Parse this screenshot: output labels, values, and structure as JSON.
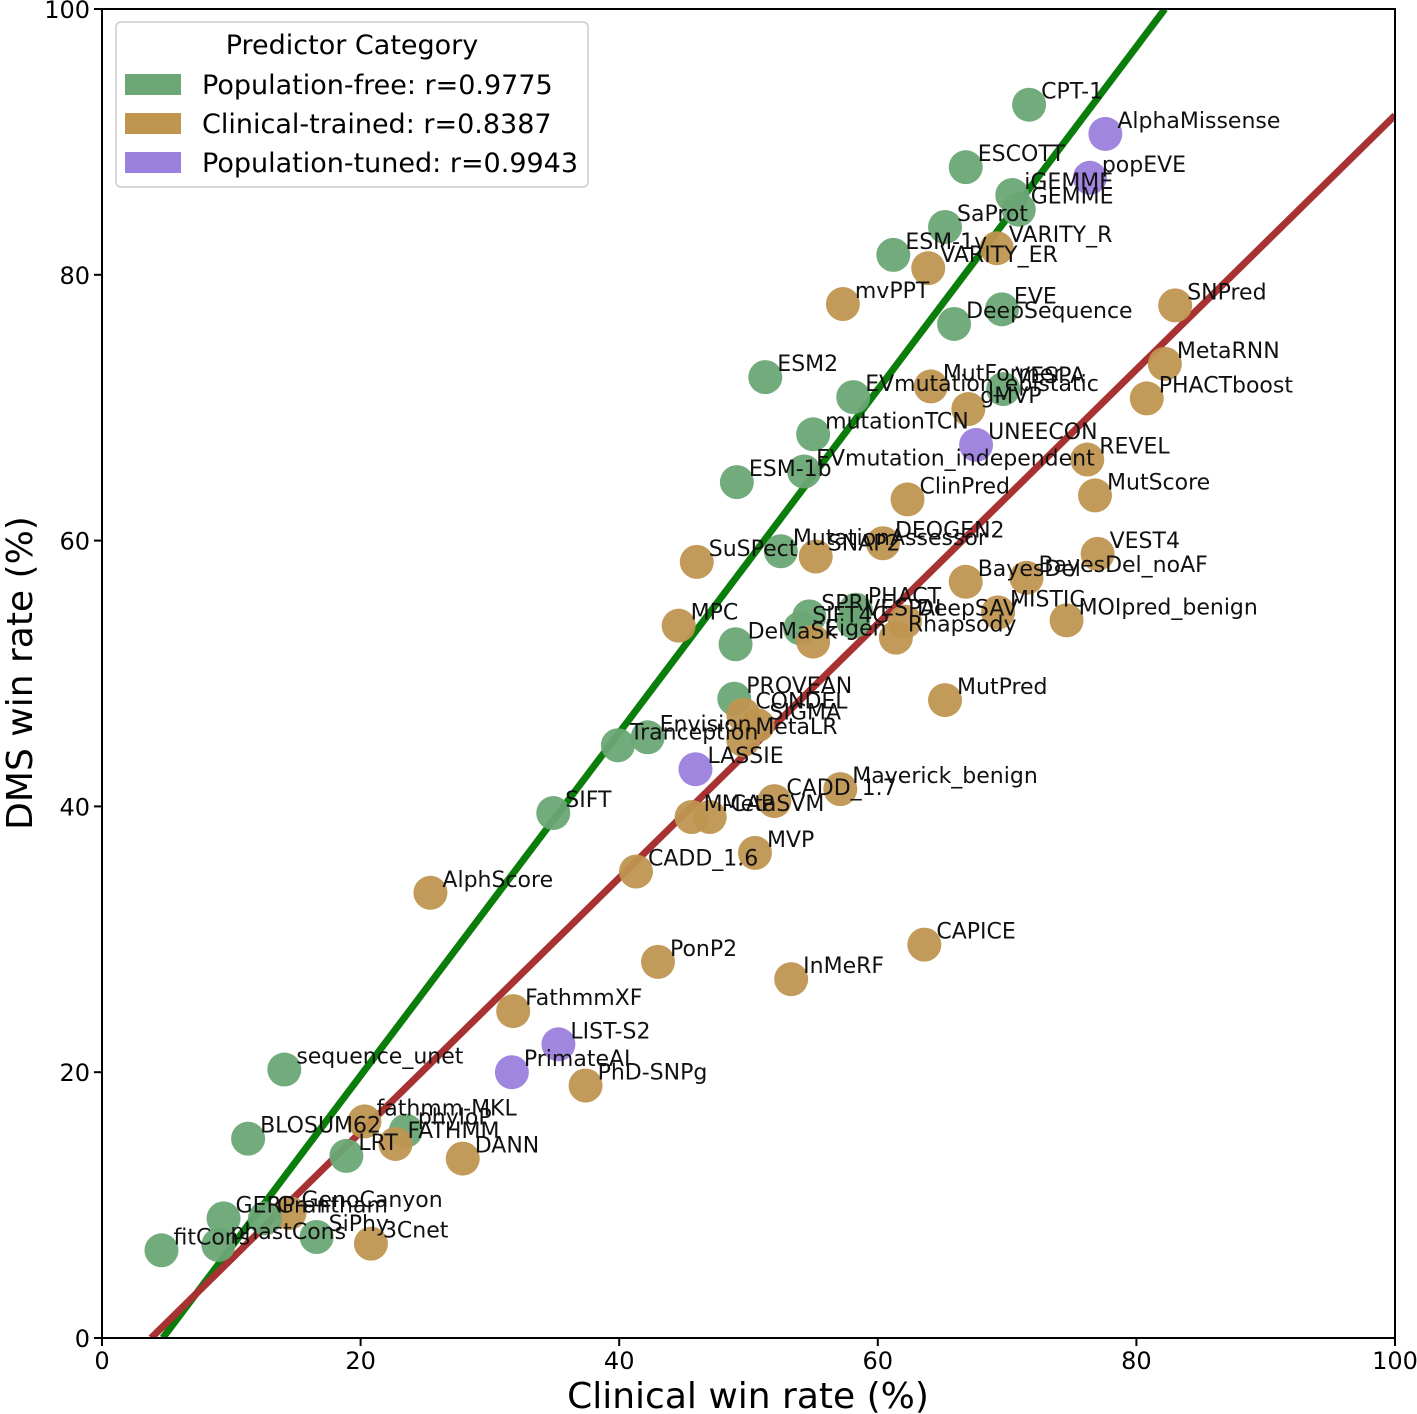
{
  "chart_data": {
    "type": "scatter",
    "xlabel": "Clinical win rate (%)",
    "ylabel": "DMS win rate (%)",
    "xlim": [
      0,
      100
    ],
    "ylim": [
      0,
      100
    ],
    "xticks": [
      0,
      20,
      40,
      60,
      80,
      100
    ],
    "yticks": [
      0,
      20,
      40,
      60,
      80,
      100
    ],
    "grid": false,
    "legend": {
      "title": "Predictor Category",
      "position": "top-left",
      "entries": [
        {
          "key": "population-free",
          "label": "Population-free: r=0.9775"
        },
        {
          "key": "clinical-trained",
          "label": "Clinical-trained: r=0.8387"
        },
        {
          "key": "population-tuned",
          "label": "Population-tuned: r=0.9943"
        }
      ]
    },
    "colors": {
      "population-free": "#6aa775",
      "clinical-trained": "#bf9550",
      "population-tuned": "#9b80dd",
      "fit_population_free": "#0a7d0a",
      "fit_clinical": "#a83232"
    },
    "fit_lines": [
      {
        "name": "Population-free fit",
        "color_key": "fit_population_free",
        "points": [
          [
            4.7,
            0
          ],
          [
            82.2,
            100
          ]
        ]
      },
      {
        "name": "Clinical-trained fit",
        "color_key": "fit_clinical",
        "points": [
          [
            3.8,
            0
          ],
          [
            100,
            92
          ]
        ]
      }
    ],
    "points": [
      {
        "name": "CPT-1",
        "x": 71.7,
        "y": 92.8,
        "cat": "population-free"
      },
      {
        "name": "AlphaMissense",
        "x": 77.6,
        "y": 90.6,
        "cat": "population-tuned"
      },
      {
        "name": "ESCOTT",
        "x": 66.8,
        "y": 88.1,
        "cat": "population-free"
      },
      {
        "name": "popEVE",
        "x": 76.4,
        "y": 87.3,
        "cat": "population-tuned"
      },
      {
        "name": "iGEMME",
        "x": 70.4,
        "y": 86.0,
        "cat": "population-free"
      },
      {
        "name": "GEMME",
        "x": 70.9,
        "y": 84.9,
        "cat": "population-free"
      },
      {
        "name": "SaProt",
        "x": 65.2,
        "y": 83.6,
        "cat": "population-free"
      },
      {
        "name": "ESM-1v",
        "x": 61.2,
        "y": 81.5,
        "cat": "population-free"
      },
      {
        "name": "VARITY_R",
        "x": 69.2,
        "y": 82.0,
        "cat": "clinical-trained"
      },
      {
        "name": "VARITY_ER",
        "x": 63.9,
        "y": 80.5,
        "cat": "clinical-trained"
      },
      {
        "name": "mvPPT",
        "x": 57.3,
        "y": 77.8,
        "cat": "clinical-trained"
      },
      {
        "name": "EVE",
        "x": 69.6,
        "y": 77.4,
        "cat": "population-free"
      },
      {
        "name": "DeepSequence",
        "x": 65.9,
        "y": 76.3,
        "cat": "population-free"
      },
      {
        "name": "SNPred",
        "x": 83.0,
        "y": 77.7,
        "cat": "clinical-trained"
      },
      {
        "name": "MetaRNN",
        "x": 82.2,
        "y": 73.3,
        "cat": "clinical-trained"
      },
      {
        "name": "ESM2",
        "x": 51.3,
        "y": 72.3,
        "cat": "population-free"
      },
      {
        "name": "VESPA",
        "x": 69.7,
        "y": 71.4,
        "cat": "population-free"
      },
      {
        "name": "MutFormer",
        "x": 64.1,
        "y": 71.6,
        "cat": "clinical-trained"
      },
      {
        "name": "EVmutation_epistatic",
        "x": 58.1,
        "y": 70.8,
        "cat": "population-free"
      },
      {
        "name": "PHACTboost",
        "x": 80.8,
        "y": 70.7,
        "cat": "clinical-trained"
      },
      {
        "name": "gMVP",
        "x": 67.0,
        "y": 69.9,
        "cat": "clinical-trained"
      },
      {
        "name": "mutationTCN",
        "x": 55.0,
        "y": 68.0,
        "cat": "population-free"
      },
      {
        "name": "UNEECON",
        "x": 67.6,
        "y": 67.2,
        "cat": "population-tuned"
      },
      {
        "name": "REVEL",
        "x": 76.2,
        "y": 66.1,
        "cat": "clinical-trained"
      },
      {
        "name": "EVmutation_independent",
        "x": 54.3,
        "y": 65.2,
        "cat": "population-free"
      },
      {
        "name": "ESM-1b",
        "x": 49.1,
        "y": 64.4,
        "cat": "population-free"
      },
      {
        "name": "ClinPred",
        "x": 62.3,
        "y": 63.1,
        "cat": "clinical-trained"
      },
      {
        "name": "MutScore",
        "x": 76.8,
        "y": 63.4,
        "cat": "clinical-trained"
      },
      {
        "name": "DEOGEN2",
        "x": 60.4,
        "y": 59.8,
        "cat": "clinical-trained"
      },
      {
        "name": "VEST4",
        "x": 77.0,
        "y": 59.0,
        "cat": "clinical-trained"
      },
      {
        "name": "MutationAssessor",
        "x": 52.5,
        "y": 59.2,
        "cat": "population-free"
      },
      {
        "name": "SuSPect",
        "x": 46.0,
        "y": 58.4,
        "cat": "clinical-trained"
      },
      {
        "name": "SNAP2",
        "x": 55.2,
        "y": 58.8,
        "cat": "clinical-trained"
      },
      {
        "name": "BayesDel",
        "x": 66.8,
        "y": 56.9,
        "cat": "clinical-trained"
      },
      {
        "name": "BayesDel_noAF",
        "x": 71.5,
        "y": 57.2,
        "cat": "clinical-trained"
      },
      {
        "name": "SPRI",
        "x": 54.7,
        "y": 54.3,
        "cat": "population-free"
      },
      {
        "name": "PHACT",
        "x": 58.3,
        "y": 54.8,
        "cat": "population-free"
      },
      {
        "name": "MISTIC",
        "x": 69.3,
        "y": 54.6,
        "cat": "clinical-trained"
      },
      {
        "name": "MPC",
        "x": 44.6,
        "y": 53.6,
        "cat": "clinical-trained"
      },
      {
        "name": "SIFT4G",
        "x": 54.0,
        "y": 53.4,
        "cat": "population-free"
      },
      {
        "name": "VESPAI",
        "x": 58.1,
        "y": 53.9,
        "cat": "population-free"
      },
      {
        "name": "DeepSAV",
        "x": 62.1,
        "y": 53.9,
        "cat": "clinical-trained"
      },
      {
        "name": "MOIpred_benign",
        "x": 74.6,
        "y": 54.0,
        "cat": "clinical-trained"
      },
      {
        "name": "Rhapsody",
        "x": 61.4,
        "y": 52.7,
        "cat": "clinical-trained"
      },
      {
        "name": "DeMaSk",
        "x": 49.0,
        "y": 52.2,
        "cat": "population-free"
      },
      {
        "name": "Eigen",
        "x": 55.0,
        "y": 52.4,
        "cat": "clinical-trained"
      },
      {
        "name": "MutPred",
        "x": 65.2,
        "y": 48.0,
        "cat": "clinical-trained"
      },
      {
        "name": "PROVEAN",
        "x": 48.9,
        "y": 48.1,
        "cat": "population-free"
      },
      {
        "name": "CONDEL",
        "x": 49.6,
        "y": 46.9,
        "cat": "clinical-trained"
      },
      {
        "name": "SIGMA",
        "x": 50.7,
        "y": 46.1,
        "cat": "clinical-trained"
      },
      {
        "name": "Envision",
        "x": 42.2,
        "y": 45.2,
        "cat": "population-free"
      },
      {
        "name": "Tranception",
        "x": 39.9,
        "y": 44.6,
        "cat": "population-free"
      },
      {
        "name": "MetaLR",
        "x": 49.6,
        "y": 45.0,
        "cat": "clinical-trained"
      },
      {
        "name": "LASSIE",
        "x": 45.9,
        "y": 42.8,
        "cat": "population-tuned"
      },
      {
        "name": "Maverick_benign",
        "x": 57.1,
        "y": 41.3,
        "cat": "clinical-trained"
      },
      {
        "name": "M-CAP",
        "x": 45.6,
        "y": 39.2,
        "cat": "clinical-trained"
      },
      {
        "name": "CADD_1.7",
        "x": 52.0,
        "y": 40.4,
        "cat": "clinical-trained"
      },
      {
        "name": "SIFT",
        "x": 34.9,
        "y": 39.5,
        "cat": "population-free"
      },
      {
        "name": "MetaSVM",
        "x": 47.0,
        "y": 39.2,
        "cat": "clinical-trained"
      },
      {
        "name": "MVP",
        "x": 50.5,
        "y": 36.5,
        "cat": "clinical-trained"
      },
      {
        "name": "CADD_1.6",
        "x": 41.3,
        "y": 35.1,
        "cat": "clinical-trained"
      },
      {
        "name": "AlphScore",
        "x": 25.4,
        "y": 33.5,
        "cat": "clinical-trained"
      },
      {
        "name": "CAPICE",
        "x": 63.6,
        "y": 29.6,
        "cat": "clinical-trained"
      },
      {
        "name": "PonP2",
        "x": 43.0,
        "y": 28.3,
        "cat": "clinical-trained"
      },
      {
        "name": "InMeRF",
        "x": 53.3,
        "y": 27.0,
        "cat": "clinical-trained"
      },
      {
        "name": "FathmmXF",
        "x": 31.8,
        "y": 24.6,
        "cat": "clinical-trained"
      },
      {
        "name": "LIST-S2",
        "x": 35.3,
        "y": 22.1,
        "cat": "population-tuned"
      },
      {
        "name": "sequence_unet",
        "x": 14.1,
        "y": 20.2,
        "cat": "population-free"
      },
      {
        "name": "PrimateAI",
        "x": 31.7,
        "y": 20.0,
        "cat": "population-tuned"
      },
      {
        "name": "PhD-SNPg",
        "x": 37.4,
        "y": 19.0,
        "cat": "clinical-trained"
      },
      {
        "name": "fathmm-MKL",
        "x": 20.3,
        "y": 16.3,
        "cat": "clinical-trained"
      },
      {
        "name": "phyloP",
        "x": 23.5,
        "y": 15.6,
        "cat": "population-free"
      },
      {
        "name": "BLOSUM62",
        "x": 11.3,
        "y": 15.0,
        "cat": "population-free"
      },
      {
        "name": "FATHMM",
        "x": 22.7,
        "y": 14.6,
        "cat": "clinical-trained"
      },
      {
        "name": "LRT",
        "x": 18.9,
        "y": 13.7,
        "cat": "population-free"
      },
      {
        "name": "DANN",
        "x": 27.9,
        "y": 13.5,
        "cat": "clinical-trained"
      },
      {
        "name": "GERP++",
        "x": 9.4,
        "y": 9.0,
        "cat": "population-free"
      },
      {
        "name": "GenoCanyon",
        "x": 14.5,
        "y": 9.4,
        "cat": "clinical-trained"
      },
      {
        "name": "Grantham",
        "x": 12.6,
        "y": 9.0,
        "cat": "population-free"
      },
      {
        "name": "fitCons",
        "x": 4.6,
        "y": 6.6,
        "cat": "population-free"
      },
      {
        "name": "phastCons",
        "x": 9.0,
        "y": 7.0,
        "cat": "population-free"
      },
      {
        "name": "SiPhy",
        "x": 16.6,
        "y": 7.6,
        "cat": "population-free"
      },
      {
        "name": "3Cnet",
        "x": 20.8,
        "y": 7.1,
        "cat": "clinical-trained"
      }
    ]
  }
}
